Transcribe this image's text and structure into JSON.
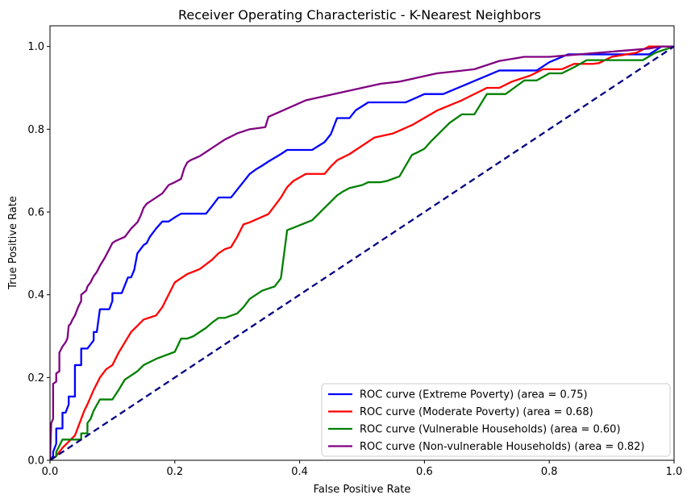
{
  "chart_data": {
    "type": "line",
    "title": "Receiver Operating Characteristic - K-Nearest Neighbors",
    "xlabel": "False Positive Rate",
    "ylabel": "True Positive Rate",
    "xlim": [
      0.0,
      1.0
    ],
    "ylim": [
      0.0,
      1.05
    ],
    "xticks": [
      "0.0",
      "0.2",
      "0.4",
      "0.6",
      "0.8",
      "1.0"
    ],
    "yticks": [
      "0.0",
      "0.2",
      "0.4",
      "0.6",
      "0.8",
      "1.0"
    ],
    "grid": false,
    "legend_position": "lower-right",
    "diagonal": {
      "color": "#000080",
      "style": "dashed",
      "x": [
        0,
        1
      ],
      "y": [
        0,
        1
      ]
    },
    "series": [
      {
        "name": "ROC curve (Extreme Poverty) (area = 0.75)",
        "color": "#0000ff",
        "x": [
          0,
          0.005,
          0.005,
          0.01,
          0.01,
          0.02,
          0.02,
          0.025,
          0.03,
          0.03,
          0.04,
          0.04,
          0.05,
          0.05,
          0.06,
          0.07,
          0.07,
          0.075,
          0.08,
          0.08,
          0.095,
          0.1,
          0.1,
          0.115,
          0.12,
          0.125,
          0.13,
          0.135,
          0.14,
          0.15,
          0.155,
          0.16,
          0.17,
          0.18,
          0.19,
          0.2,
          0.21,
          0.22,
          0.25,
          0.26,
          0.27,
          0.28,
          0.29,
          0.3,
          0.31,
          0.32,
          0.33,
          0.34,
          0.35,
          0.36,
          0.37,
          0.38,
          0.39,
          0.4,
          0.42,
          0.44,
          0.45,
          0.46,
          0.47,
          0.48,
          0.49,
          0.51,
          0.52,
          0.55,
          0.56,
          0.57,
          0.6,
          0.62,
          0.63,
          0.66,
          0.69,
          0.72,
          0.75,
          0.78,
          0.8,
          0.83,
          0.86,
          0.9,
          0.93,
          0.96,
          0.98,
          1.0
        ],
        "y": [
          0,
          0.01,
          0.02,
          0.04,
          0.077,
          0.077,
          0.115,
          0.115,
          0.135,
          0.154,
          0.154,
          0.23,
          0.23,
          0.27,
          0.27,
          0.29,
          0.31,
          0.31,
          0.365,
          0.365,
          0.365,
          0.385,
          0.404,
          0.404,
          0.423,
          0.442,
          0.442,
          0.46,
          0.5,
          0.52,
          0.525,
          0.54,
          0.56,
          0.577,
          0.577,
          0.587,
          0.596,
          0.596,
          0.596,
          0.615,
          0.635,
          0.635,
          0.635,
          0.654,
          0.673,
          0.692,
          0.703,
          0.712,
          0.722,
          0.731,
          0.74,
          0.75,
          0.75,
          0.75,
          0.75,
          0.769,
          0.788,
          0.827,
          0.827,
          0.827,
          0.846,
          0.865,
          0.865,
          0.865,
          0.865,
          0.865,
          0.885,
          0.885,
          0.885,
          0.904,
          0.923,
          0.942,
          0.942,
          0.942,
          0.962,
          0.981,
          0.981,
          0.981,
          0.981,
          0.981,
          1.0,
          1.0
        ]
      },
      {
        "name": "ROC curve (Moderate Poverty) (area = 0.68)",
        "color": "#ff0000",
        "x": [
          0,
          0.01,
          0.02,
          0.03,
          0.04,
          0.045,
          0.05,
          0.055,
          0.06,
          0.07,
          0.08,
          0.09,
          0.1,
          0.11,
          0.12,
          0.13,
          0.14,
          0.15,
          0.16,
          0.17,
          0.18,
          0.19,
          0.2,
          0.21,
          0.22,
          0.24,
          0.26,
          0.27,
          0.28,
          0.29,
          0.3,
          0.31,
          0.32,
          0.35,
          0.36,
          0.37,
          0.38,
          0.39,
          0.41,
          0.43,
          0.44,
          0.45,
          0.46,
          0.48,
          0.49,
          0.5,
          0.52,
          0.55,
          0.58,
          0.62,
          0.66,
          0.7,
          0.72,
          0.74,
          0.77,
          0.79,
          0.8,
          0.82,
          0.84,
          0.87,
          0.88,
          0.9,
          0.94,
          0.96,
          0.97,
          1.0
        ],
        "y": [
          0,
          0.01,
          0.03,
          0.045,
          0.06,
          0.08,
          0.1,
          0.12,
          0.135,
          0.17,
          0.2,
          0.22,
          0.23,
          0.26,
          0.285,
          0.31,
          0.325,
          0.34,
          0.345,
          0.35,
          0.37,
          0.4,
          0.43,
          0.44,
          0.45,
          0.462,
          0.485,
          0.5,
          0.51,
          0.515,
          0.54,
          0.57,
          0.575,
          0.595,
          0.615,
          0.635,
          0.66,
          0.675,
          0.692,
          0.692,
          0.692,
          0.71,
          0.725,
          0.74,
          0.75,
          0.76,
          0.78,
          0.79,
          0.81,
          0.845,
          0.87,
          0.9,
          0.9,
          0.915,
          0.93,
          0.945,
          0.945,
          0.945,
          0.958,
          0.958,
          0.96,
          0.975,
          0.985,
          1.0,
          1.0,
          1.0
        ]
      },
      {
        "name": "ROC curve (Vulnerable Households) (area = 0.60)",
        "color": "#008000",
        "x": [
          0,
          0.01,
          0.01,
          0.02,
          0.04,
          0.05,
          0.05,
          0.06,
          0.06,
          0.065,
          0.07,
          0.08,
          0.1,
          0.11,
          0.12,
          0.14,
          0.15,
          0.17,
          0.2,
          0.21,
          0.22,
          0.23,
          0.24,
          0.25,
          0.26,
          0.27,
          0.28,
          0.3,
          0.31,
          0.32,
          0.33,
          0.34,
          0.36,
          0.37,
          0.38,
          0.39,
          0.4,
          0.42,
          0.44,
          0.45,
          0.46,
          0.47,
          0.48,
          0.5,
          0.51,
          0.53,
          0.54,
          0.56,
          0.58,
          0.59,
          0.6,
          0.61,
          0.62,
          0.63,
          0.64,
          0.66,
          0.68,
          0.7,
          0.73,
          0.76,
          0.78,
          0.8,
          0.82,
          0.84,
          0.86,
          0.88,
          0.9,
          0.95,
          0.97,
          1.0
        ],
        "y": [
          0,
          0.01,
          0.02,
          0.05,
          0.05,
          0.05,
          0.065,
          0.065,
          0.09,
          0.1,
          0.12,
          0.147,
          0.147,
          0.17,
          0.195,
          0.215,
          0.23,
          0.245,
          0.262,
          0.294,
          0.294,
          0.3,
          0.31,
          0.32,
          0.333,
          0.344,
          0.344,
          0.355,
          0.37,
          0.39,
          0.4,
          0.41,
          0.42,
          0.44,
          0.556,
          0.562,
          0.568,
          0.58,
          0.61,
          0.625,
          0.64,
          0.65,
          0.658,
          0.665,
          0.672,
          0.672,
          0.675,
          0.686,
          0.738,
          0.745,
          0.753,
          0.77,
          0.785,
          0.8,
          0.815,
          0.836,
          0.836,
          0.885,
          0.885,
          0.918,
          0.918,
          0.935,
          0.935,
          0.95,
          0.967,
          0.967,
          0.967,
          0.967,
          0.985,
          1.0
        ]
      },
      {
        "name": "ROC curve (Non-vulnerable Households) (area = 0.82)",
        "color": "#800080",
        "x": [
          0,
          0.002,
          0.005,
          0.005,
          0.01,
          0.01,
          0.015,
          0.015,
          0.02,
          0.025,
          0.028,
          0.03,
          0.033,
          0.036,
          0.04,
          0.045,
          0.05,
          0.05,
          0.058,
          0.06,
          0.065,
          0.07,
          0.075,
          0.08,
          0.088,
          0.095,
          0.1,
          0.105,
          0.12,
          0.125,
          0.13,
          0.14,
          0.145,
          0.15,
          0.155,
          0.16,
          0.17,
          0.18,
          0.185,
          0.19,
          0.2,
          0.21,
          0.215,
          0.22,
          0.225,
          0.24,
          0.26,
          0.28,
          0.3,
          0.32,
          0.345,
          0.35,
          0.38,
          0.41,
          0.44,
          0.47,
          0.5,
          0.53,
          0.56,
          0.59,
          0.62,
          0.65,
          0.68,
          0.72,
          0.76,
          0.8,
          0.84,
          0.88,
          0.92,
          0.96,
          0.98,
          1.0
        ],
        "y": [
          0,
          0.09,
          0.1,
          0.185,
          0.19,
          0.21,
          0.215,
          0.26,
          0.275,
          0.285,
          0.295,
          0.325,
          0.33,
          0.34,
          0.35,
          0.37,
          0.385,
          0.4,
          0.41,
          0.42,
          0.43,
          0.445,
          0.455,
          0.47,
          0.49,
          0.51,
          0.525,
          0.53,
          0.54,
          0.55,
          0.56,
          0.575,
          0.59,
          0.61,
          0.62,
          0.625,
          0.635,
          0.645,
          0.655,
          0.665,
          0.672,
          0.68,
          0.705,
          0.72,
          0.725,
          0.735,
          0.755,
          0.775,
          0.79,
          0.8,
          0.805,
          0.83,
          0.85,
          0.87,
          0.88,
          0.89,
          0.9,
          0.91,
          0.915,
          0.925,
          0.935,
          0.94,
          0.945,
          0.965,
          0.975,
          0.975,
          0.98,
          0.985,
          0.99,
          0.995,
          1.0,
          1.0
        ]
      }
    ]
  }
}
